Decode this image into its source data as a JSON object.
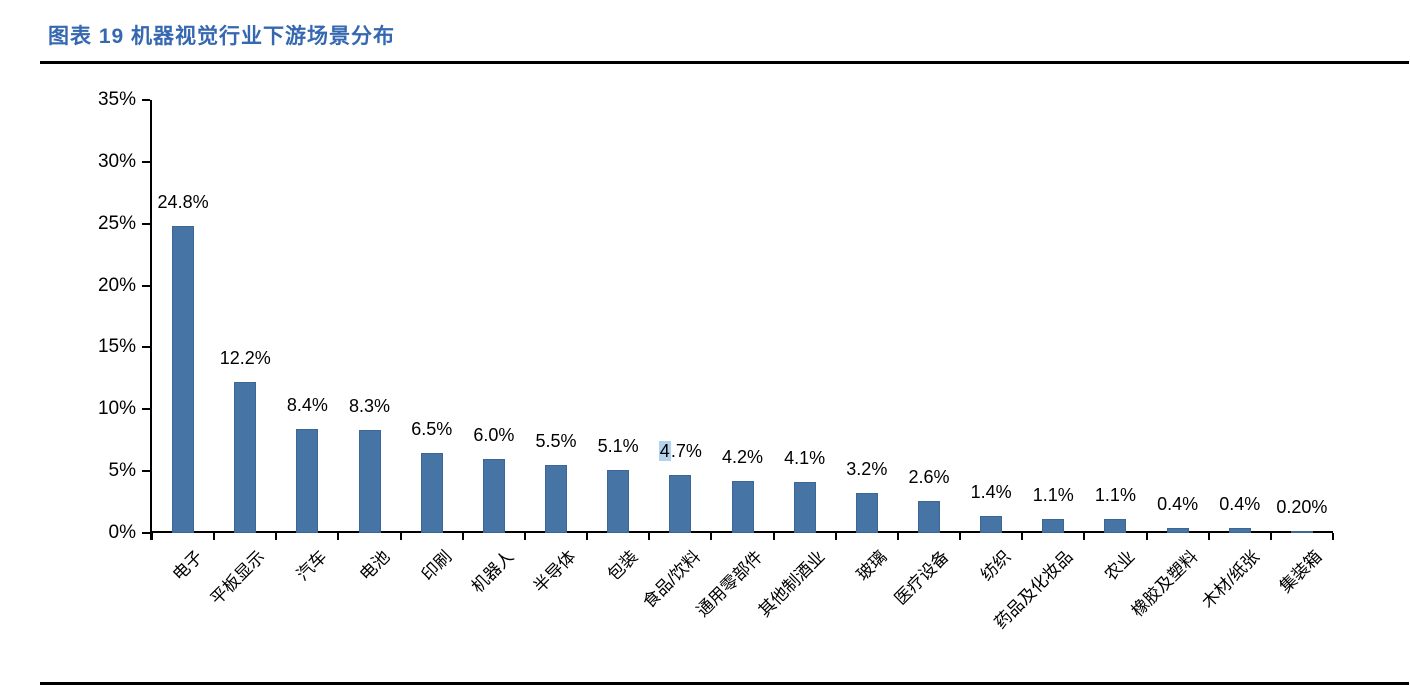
{
  "header": {
    "title": "图表  19  机器视觉行业下游场景分布"
  },
  "chart_data": {
    "type": "bar",
    "title": "机器视觉行业下游场景分布",
    "categories": [
      "电子",
      "平板显示",
      "汽车",
      "电池",
      "印刷",
      "机器人",
      "半导体",
      "包装",
      "食品/饮料",
      "通用零部件",
      "其他制酒业",
      "玻璃",
      "医疗设备",
      "纺织",
      "药品及化妆品",
      "农业",
      "橡胶及塑料",
      "木材/纸张",
      "集装箱"
    ],
    "values": [
      24.8,
      12.2,
      8.4,
      8.3,
      6.5,
      6.0,
      5.5,
      5.1,
      4.7,
      4.2,
      4.1,
      3.2,
      2.6,
      1.4,
      1.1,
      1.1,
      0.4,
      0.4,
      0.2
    ],
    "value_labels": [
      "24.8%",
      "12.2%",
      "8.4%",
      "8.3%",
      "6.5%",
      "6.0%",
      "5.5%",
      "5.1%",
      "4.7%",
      "4.2%",
      "4.1%",
      "3.2%",
      "2.6%",
      "1.4%",
      "1.1%",
      "1.1%",
      "0.4%",
      "0.4%",
      "0.20%"
    ],
    "xlabel": "",
    "ylabel": "",
    "ylim": [
      0,
      35
    ],
    "ytick_step": 5,
    "ytick_labels": [
      "0%",
      "5%",
      "10%",
      "15%",
      "20%",
      "25%",
      "30%",
      "35%"
    ],
    "grid": false,
    "legend": "none",
    "bar_color": "#4674a5",
    "selection_highlight": {
      "bar_index": 8,
      "chars": 1,
      "color": "#b3d2ec"
    }
  },
  "colors": {
    "title": "#3568b0",
    "rule": "#000000",
    "axis": "#000000",
    "bar": "#4674a5",
    "bar_border": "#3c6693",
    "text": "#000000"
  }
}
